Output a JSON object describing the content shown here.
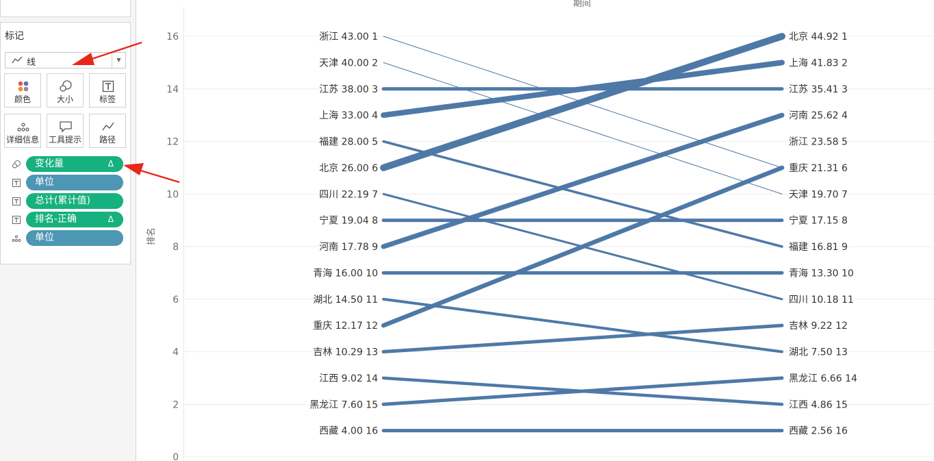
{
  "marks": {
    "title": "标记",
    "mark_type": "线",
    "buttons": [
      {
        "label": "颜色",
        "icon": "color-icon"
      },
      {
        "label": "大小",
        "icon": "size-icon"
      },
      {
        "label": "标签",
        "icon": "label-icon"
      },
      {
        "label": "详细信息",
        "icon": "detail-icon"
      },
      {
        "label": "工具提示",
        "icon": "tooltip-icon"
      },
      {
        "label": "路径",
        "icon": "path-icon"
      }
    ],
    "pills": [
      {
        "label": "变化量",
        "delta": "Δ",
        "color": "green",
        "icon": "size-icon"
      },
      {
        "label": "单位",
        "delta": "",
        "color": "blue",
        "icon": "label-icon"
      },
      {
        "label": "总计(累计值)",
        "delta": "",
        "color": "green",
        "icon": "label-icon"
      },
      {
        "label": "排名-正确",
        "delta": "Δ",
        "color": "green",
        "icon": "label-icon"
      },
      {
        "label": "单位",
        "delta": "",
        "color": "blue",
        "icon": "detail-icon"
      }
    ]
  },
  "colors": {
    "line": "#4e79a7",
    "arrow": "#e8261c",
    "gridline": "#ececec"
  },
  "chart_data": {
    "type": "line",
    "xlabel": "期间",
    "ylabel": "排名",
    "ylim": [
      0,
      16.5
    ],
    "yticks": [
      0,
      2,
      4,
      6,
      8,
      10,
      12,
      14,
      16
    ],
    "grid": true,
    "start_labels": [
      "浙江 43.00 1",
      "天津 40.00 2",
      "江苏 38.00 3",
      "上海 33.00 4",
      "福建 28.00 5",
      "北京 26.00 6",
      "四川 22.19 7",
      "宁夏 19.04 8",
      "河南 17.78 9",
      "青海 16.00 10",
      "湖北 14.50 11",
      "重庆 12.17 12",
      "吉林 10.29 13",
      "江西 9.02 14",
      "黑龙江 7.60 15",
      "西藏 4.00 16"
    ],
    "end_labels": [
      "北京 44.92 1",
      "上海 41.83 2",
      "江苏 35.41 3",
      "河南 25.62 4",
      "浙江 23.58 5",
      "重庆 21.31 6",
      "天津 19.70 7",
      "宁夏 17.15 8",
      "福建 16.81 9",
      "青海 13.30 10",
      "四川 10.18 11",
      "吉林 9.22 12",
      "湖北 7.50 13",
      "黑龙江 6.66 14",
      "江西 4.86 15",
      "西藏 2.56 16"
    ],
    "lines": [
      {
        "start": 16,
        "end": 11,
        "size": 1
      },
      {
        "start": 15,
        "end": 10,
        "size": 1
      },
      {
        "start": 14,
        "end": 14,
        "size": 5
      },
      {
        "start": 13,
        "end": 15,
        "size": 8
      },
      {
        "start": 12,
        "end": 8,
        "size": 3.5
      },
      {
        "start": 11,
        "end": 16,
        "size": 10
      },
      {
        "start": 10,
        "end": 6,
        "size": 3
      },
      {
        "start": 9,
        "end": 9,
        "size": 5
      },
      {
        "start": 8,
        "end": 13,
        "size": 7
      },
      {
        "start": 7,
        "end": 7,
        "size": 5
      },
      {
        "start": 6,
        "end": 4,
        "size": 4
      },
      {
        "start": 5,
        "end": 11,
        "size": 6.5
      },
      {
        "start": 4,
        "end": 5,
        "size": 5
      },
      {
        "start": 3,
        "end": 2,
        "size": 4.5
      },
      {
        "start": 2,
        "end": 3,
        "size": 5
      },
      {
        "start": 1,
        "end": 1,
        "size": 5
      }
    ]
  }
}
